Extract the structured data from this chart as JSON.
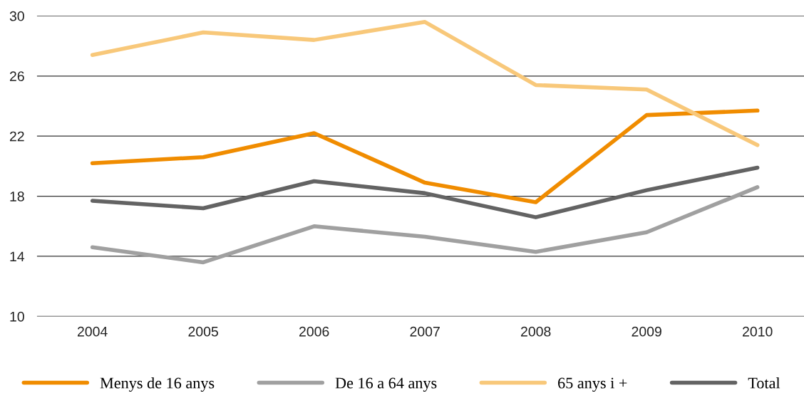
{
  "chart_data": {
    "type": "line",
    "categories": [
      "2004",
      "2005",
      "2006",
      "2007",
      "2008",
      "2009",
      "2010"
    ],
    "series": [
      {
        "name": "Menys de 16 anys",
        "color": "#f08c00",
        "values": [
          20.2,
          20.6,
          22.2,
          18.9,
          17.6,
          23.4,
          23.7
        ]
      },
      {
        "name": "De 16 a 64 anys",
        "color": "#a0a0a0",
        "values": [
          14.6,
          13.6,
          16.0,
          15.3,
          14.3,
          15.6,
          18.6
        ]
      },
      {
        "name": "65 anys i +",
        "color": "#f8c87a",
        "values": [
          27.4,
          28.9,
          28.4,
          29.6,
          25.4,
          25.1,
          21.4
        ]
      },
      {
        "name": "Total",
        "color": "#636363",
        "values": [
          17.7,
          17.2,
          19.0,
          18.2,
          16.6,
          18.4,
          19.9
        ]
      }
    ],
    "ylim": [
      10,
      30
    ],
    "yticks": [
      10,
      14,
      18,
      22,
      26,
      30
    ],
    "grid": "y",
    "legend": "bottom",
    "marker": "none",
    "line_style": "solid"
  }
}
